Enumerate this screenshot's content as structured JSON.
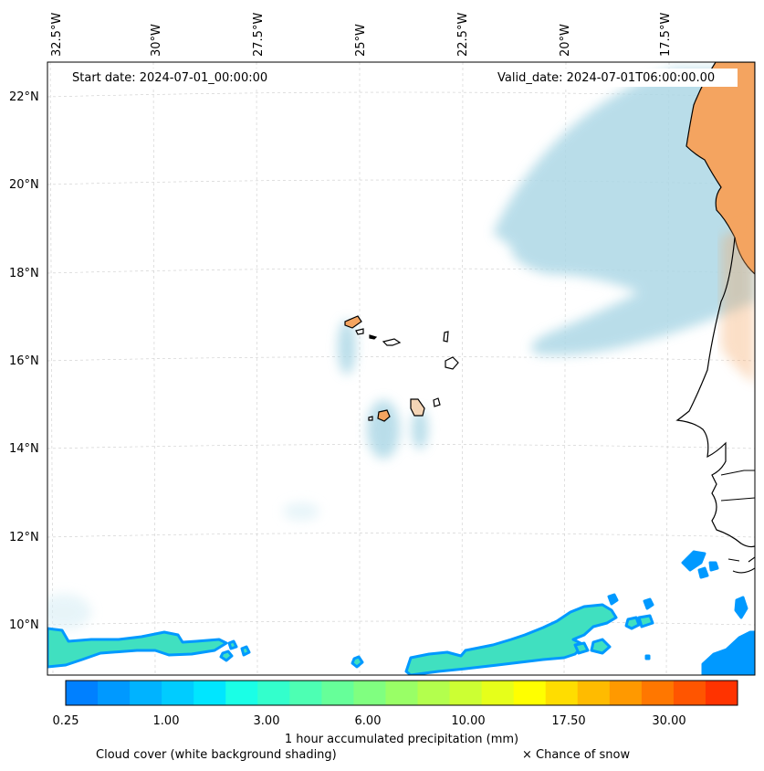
{
  "map": {
    "start_date": "Start date: 2024-07-01_00:00:00",
    "valid_date": "Valid_date: 2024-07-01T06:00:00.00",
    "longitude_labels": [
      "32.5°W",
      "30°W",
      "27.5°W",
      "25°W",
      "22.5°W",
      "20°W",
      "17.5°W"
    ],
    "latitude_labels": [
      "22°N",
      "20°N",
      "18°N",
      "16°N",
      "14°N",
      "12°N",
      "10°N"
    ],
    "land_color": "#f4a460",
    "cloud_color": "#add8e6",
    "coastline_color": "#000000"
  },
  "colorbar": {
    "title": "1 hour accumulated precipitation (mm)",
    "tick_labels": [
      "0.25",
      "1.00",
      "3.00",
      "6.00",
      "10.00",
      "17.50",
      "30.00"
    ],
    "colors": [
      "#0080ff",
      "#0099ff",
      "#00b3ff",
      "#00ccff",
      "#00e6ff",
      "#1affe6",
      "#33ffcc",
      "#4dffb3",
      "#66ff99",
      "#80ff80",
      "#99ff66",
      "#b3ff4d",
      "#ccff33",
      "#e6ff1a",
      "#ffff00",
      "#ffdd00",
      "#ffbb00",
      "#ff9900",
      "#ff7700",
      "#ff5500",
      "#ff3300"
    ]
  },
  "legend": {
    "cloud_cover": "Cloud cover (white background shading)",
    "snow": "× Chance of snow"
  }
}
